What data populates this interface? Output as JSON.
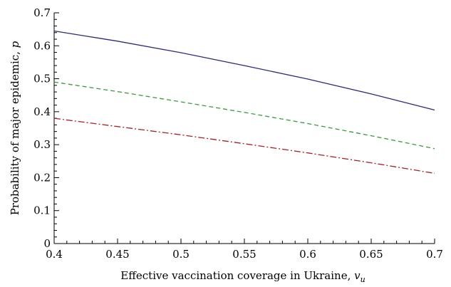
{
  "chart_data": {
    "type": "line",
    "xlabel": "Effective vaccination coverage in Ukraine, ",
    "xlabel_var": "v",
    "xlabel_sub": "u",
    "ylabel": "Probability of major epidemic, ",
    "ylabel_var": "p",
    "xlim": [
      0.4,
      0.7
    ],
    "ylim": [
      0,
      0.7
    ],
    "x_ticks": [
      "0.4",
      "0.45",
      "0.5",
      "0.55",
      "0.6",
      "0.65",
      "0.7"
    ],
    "y_ticks": [
      "0",
      "0.1",
      "0.2",
      "0.3",
      "0.4",
      "0.5",
      "0.6",
      "0.7"
    ],
    "grid": false,
    "series": [
      {
        "style": "solid",
        "color": "#2b2b7a",
        "x": [
          0.4,
          0.45,
          0.5,
          0.55,
          0.6,
          0.65,
          0.7
        ],
        "y": [
          0.645,
          0.614,
          0.579,
          0.54,
          0.499,
          0.454,
          0.405
        ]
      },
      {
        "style": "dashed",
        "color": "#3a9a3a",
        "x": [
          0.4,
          0.45,
          0.5,
          0.55,
          0.6,
          0.65,
          0.7
        ],
        "y": [
          0.49,
          0.461,
          0.43,
          0.398,
          0.364,
          0.327,
          0.288
        ]
      },
      {
        "style": "dashdot",
        "color": "#a82020",
        "x": [
          0.4,
          0.45,
          0.5,
          0.55,
          0.6,
          0.65,
          0.7
        ],
        "y": [
          0.38,
          0.355,
          0.33,
          0.303,
          0.275,
          0.245,
          0.213
        ]
      }
    ]
  }
}
